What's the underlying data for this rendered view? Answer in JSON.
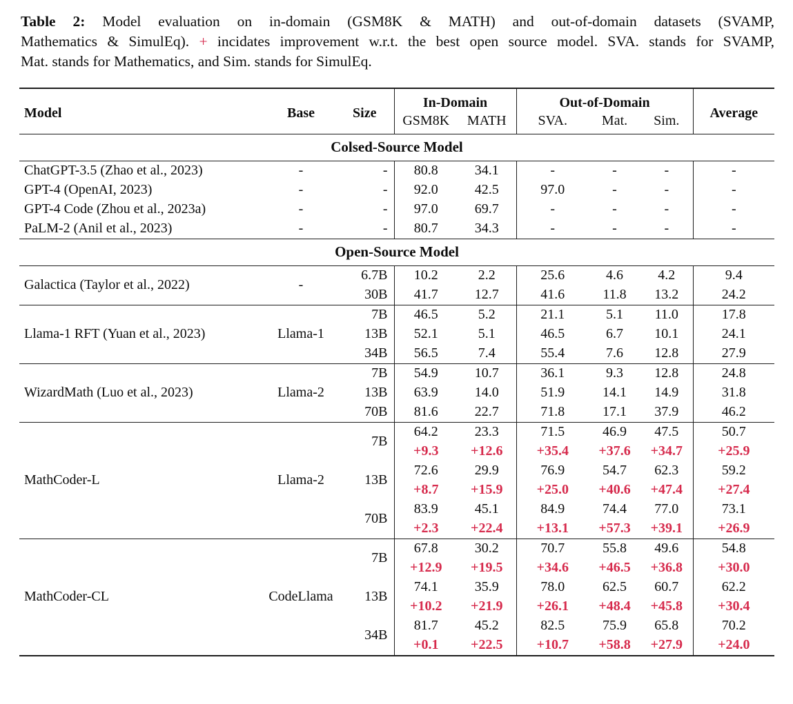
{
  "colors": {
    "accent_red": "#d62a4c",
    "rule": "#1c1c1c"
  },
  "caption": {
    "label": "Table 2:",
    "line1": "Model evaluation on in-domain (GSM8K & MATH) and out-of-domain datasets (SVAMP,",
    "line2_pre": "Mathematics & SimulEq).",
    "line2_plus": "+",
    "line2_post": "incidates improvement w.r.t. the best open source model. SVA. stands for SVAMP,",
    "line3": "Mat. stands for Mathematics, and Sim. stands for SimulEq."
  },
  "table": {
    "header": {
      "model": "Model",
      "base": "Base",
      "size": "Size",
      "in_domain": "In-Domain",
      "out_of_domain": "Out-of-Domain",
      "average": "Average",
      "sub": [
        "GSM8K",
        "MATH",
        "SVA.",
        "Mat.",
        "Sim."
      ]
    },
    "sections": [
      {
        "title": "Colsed-Source Model",
        "groups": [
          {
            "model": "ChatGPT-3.5 (Zhao et al., 2023)",
            "base": "-",
            "rows": [
              {
                "size": "-",
                "values": [
                  "80.8",
                  "34.1",
                  "-",
                  "-",
                  "-",
                  "-"
                ]
              }
            ]
          },
          {
            "model": "GPT-4 (OpenAI, 2023)",
            "base": "-",
            "rows": [
              {
                "size": "-",
                "values": [
                  "92.0",
                  "42.5",
                  "97.0",
                  "-",
                  "-",
                  "-"
                ]
              }
            ]
          },
          {
            "model": "GPT-4 Code (Zhou et al., 2023a)",
            "base": "-",
            "rows": [
              {
                "size": "-",
                "values": [
                  "97.0",
                  "69.7",
                  "-",
                  "-",
                  "-",
                  "-"
                ]
              }
            ]
          },
          {
            "model": "PaLM-2 (Anil et al., 2023)",
            "base": "-",
            "rows": [
              {
                "size": "-",
                "values": [
                  "80.7",
                  "34.3",
                  "-",
                  "-",
                  "-",
                  "-"
                ]
              }
            ]
          }
        ]
      },
      {
        "title": "Open-Source Model",
        "groups": [
          {
            "model": "Galactica (Taylor et al., 2022)",
            "base": "-",
            "rows": [
              {
                "size": "6.7B",
                "values": [
                  "10.2",
                  "2.2",
                  "25.6",
                  "4.6",
                  "4.2",
                  "9.4"
                ]
              },
              {
                "size": "30B",
                "values": [
                  "41.7",
                  "12.7",
                  "41.6",
                  "11.8",
                  "13.2",
                  "24.2"
                ]
              }
            ]
          },
          {
            "model": "Llama-1 RFT (Yuan et al., 2023)",
            "base": "Llama-1",
            "rows": [
              {
                "size": "7B",
                "values": [
                  "46.5",
                  "5.2",
                  "21.1",
                  "5.1",
                  "11.0",
                  "17.8"
                ]
              },
              {
                "size": "13B",
                "values": [
                  "52.1",
                  "5.1",
                  "46.5",
                  "6.7",
                  "10.1",
                  "24.1"
                ]
              },
              {
                "size": "34B",
                "values": [
                  "56.5",
                  "7.4",
                  "55.4",
                  "7.6",
                  "12.8",
                  "27.9"
                ]
              }
            ]
          },
          {
            "model": "WizardMath (Luo et al., 2023)",
            "base": "Llama-2",
            "rows": [
              {
                "size": "7B",
                "values": [
                  "54.9",
                  "10.7",
                  "36.1",
                  "9.3",
                  "12.8",
                  "24.8"
                ]
              },
              {
                "size": "13B",
                "values": [
                  "63.9",
                  "14.0",
                  "51.9",
                  "14.1",
                  "14.9",
                  "31.8"
                ]
              },
              {
                "size": "70B",
                "values": [
                  "81.6",
                  "22.7",
                  "71.8",
                  "17.1",
                  "37.9",
                  "46.2"
                ]
              }
            ]
          },
          {
            "model": "MathCoder-L",
            "base": "Llama-2",
            "rows": [
              {
                "size": "7B",
                "values": [
                  "64.2",
                  "23.3",
                  "71.5",
                  "46.9",
                  "47.5",
                  "50.7"
                ],
                "delta": [
                  "+9.3",
                  "+12.6",
                  "+35.4",
                  "+37.6",
                  "+34.7",
                  "+25.9"
                ]
              },
              {
                "size": "13B",
                "values": [
                  "72.6",
                  "29.9",
                  "76.9",
                  "54.7",
                  "62.3",
                  "59.2"
                ],
                "delta": [
                  "+8.7",
                  "+15.9",
                  "+25.0",
                  "+40.6",
                  "+47.4",
                  "+27.4"
                ]
              },
              {
                "size": "70B",
                "values": [
                  "83.9",
                  "45.1",
                  "84.9",
                  "74.4",
                  "77.0",
                  "73.1"
                ],
                "delta": [
                  "+2.3",
                  "+22.4",
                  "+13.1",
                  "+57.3",
                  "+39.1",
                  "+26.9"
                ]
              }
            ]
          },
          {
            "model": "MathCoder-CL",
            "base": "CodeLlama",
            "rows": [
              {
                "size": "7B",
                "values": [
                  "67.8",
                  "30.2",
                  "70.7",
                  "55.8",
                  "49.6",
                  "54.8"
                ],
                "delta": [
                  "+12.9",
                  "+19.5",
                  "+34.6",
                  "+46.5",
                  "+36.8",
                  "+30.0"
                ]
              },
              {
                "size": "13B",
                "values": [
                  "74.1",
                  "35.9",
                  "78.0",
                  "62.5",
                  "60.7",
                  "62.2"
                ],
                "delta": [
                  "+10.2",
                  "+21.9",
                  "+26.1",
                  "+48.4",
                  "+45.8",
                  "+30.4"
                ]
              },
              {
                "size": "34B",
                "values": [
                  "81.7",
                  "45.2",
                  "82.5",
                  "75.9",
                  "65.8",
                  "70.2"
                ],
                "delta": [
                  "+0.1",
                  "+22.5",
                  "+10.7",
                  "+58.8",
                  "+27.9",
                  "+24.0"
                ]
              }
            ]
          }
        ]
      }
    ]
  }
}
